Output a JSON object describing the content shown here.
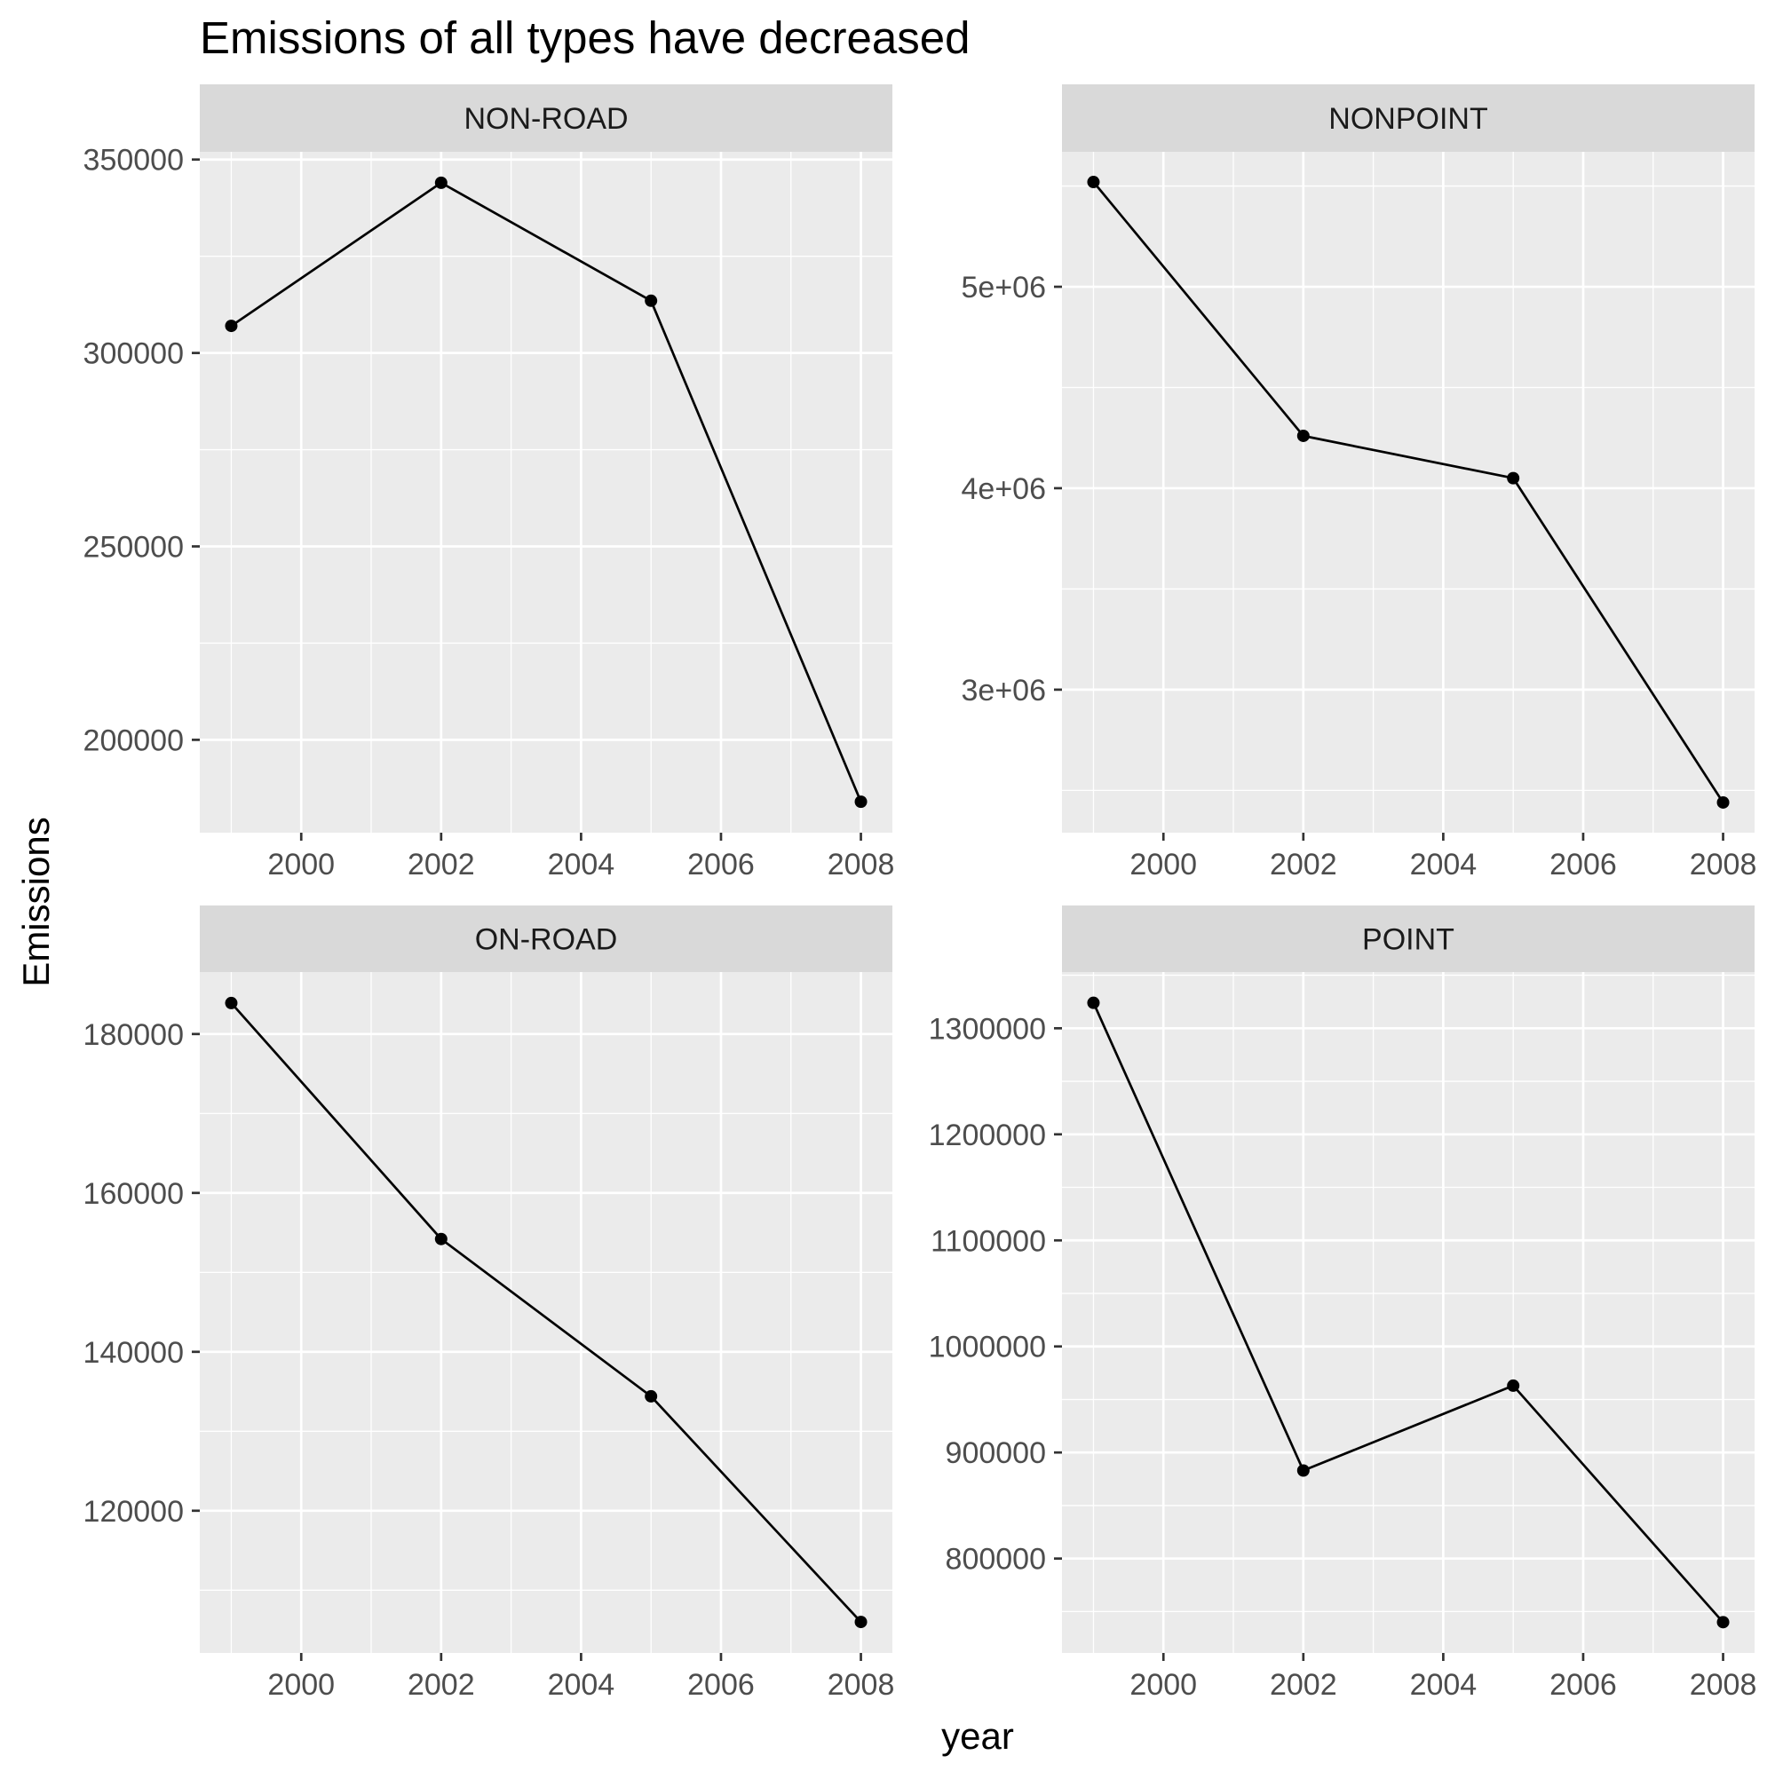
{
  "chart_data": {
    "type": "line",
    "title": "Emissions of all types have decreased",
    "xlabel": "year",
    "ylabel": "Emissions",
    "x": [
      1999,
      2002,
      2005,
      2008
    ],
    "xticks": [
      "2000",
      "2002",
      "2004",
      "2006",
      "2008"
    ],
    "xlim": [
      1998.55,
      2008.45
    ],
    "grid": true,
    "colors": {
      "panel_bg": "#ebebeb",
      "strip_bg": "#d9d9d9",
      "grid": "#ffffff",
      "line": "#000000"
    },
    "panels": [
      {
        "name": "NON-ROAD",
        "values": [
          307000,
          344000,
          313500,
          184000
        ],
        "ylim": [
          176000,
          352000
        ],
        "yticks": [
          200000,
          250000,
          300000,
          350000
        ],
        "ytick_labels": [
          "200000",
          "250000",
          "300000",
          "350000"
        ]
      },
      {
        "name": "NONPOINT",
        "values": [
          5520000,
          4260000,
          4050000,
          2440000
        ],
        "ylim": [
          2290000,
          5670000
        ],
        "yticks": [
          3000000,
          4000000,
          5000000
        ],
        "ytick_labels": [
          "3e+06",
          "4e+06",
          "5e+06"
        ]
      },
      {
        "name": "ON-ROAD",
        "values": [
          183900,
          154200,
          134400,
          106000
        ],
        "ylim": [
          102100,
          187800
        ],
        "yticks": [
          120000,
          140000,
          160000,
          180000
        ],
        "ytick_labels": [
          "120000",
          "140000",
          "160000",
          "180000"
        ]
      },
      {
        "name": "POINT",
        "values": [
          1324000,
          883000,
          963000,
          740000
        ],
        "ylim": [
          711000,
          1353000
        ],
        "yticks": [
          800000,
          900000,
          1000000,
          1100000,
          1200000,
          1300000
        ],
        "ytick_labels": [
          "800000",
          "900000",
          "1000000",
          "1100000",
          "1200000",
          "1300000"
        ]
      }
    ]
  }
}
